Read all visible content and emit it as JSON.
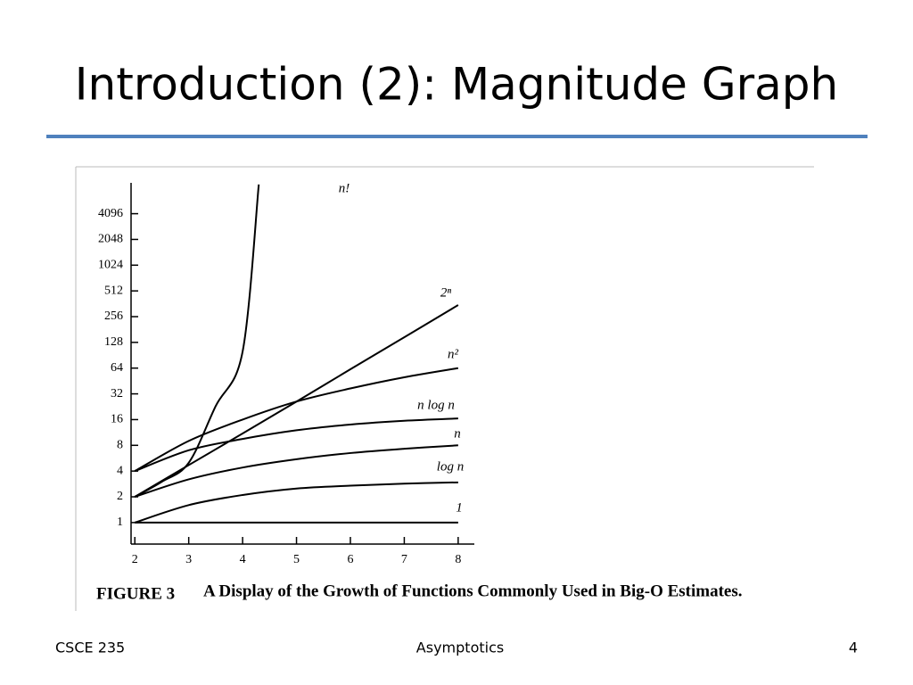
{
  "slide": {
    "title": "Introduction (2): Magnitude Graph",
    "footer_left": "CSCE 235",
    "footer_center": "Asymptotics",
    "footer_right": "4"
  },
  "chart_data": {
    "type": "line",
    "figure_label": "FIGURE 3",
    "caption": "A Display of the Growth of Functions Commonly Used in Big-O Estimates.",
    "x": [
      2,
      3,
      4,
      5,
      6,
      7,
      8
    ],
    "xlim": [
      1.93,
      8.3
    ],
    "xticks": [
      2,
      3,
      4,
      5,
      6,
      7,
      8
    ],
    "yscale": "log",
    "log_base": 2,
    "ylim": [
      0.56,
      9400
    ],
    "yticks": [
      1,
      2,
      4,
      8,
      16,
      32,
      64,
      128,
      256,
      512,
      1024,
      2048,
      4096
    ],
    "grid": false,
    "series": [
      {
        "name": "n!",
        "color": "#000000",
        "x": [
          2,
          2.5,
          3,
          3.5,
          4,
          4.3
        ],
        "values": [
          2,
          3,
          5,
          23,
          100,
          9000
        ]
      },
      {
        "name": "2ⁿ",
        "color": "#000000",
        "values": [
          2,
          4.7,
          11,
          26,
          62,
          147,
          350
        ]
      },
      {
        "name": "n²",
        "color": "#000000",
        "values": [
          4,
          9,
          16,
          26,
          37,
          50,
          64
        ]
      },
      {
        "name": "n log n",
        "color": "#000000",
        "values": [
          4,
          7,
          9.5,
          12,
          14,
          15.5,
          16.5
        ]
      },
      {
        "name": "n",
        "color": "#000000",
        "values": [
          2,
          3.2,
          4.4,
          5.5,
          6.5,
          7.3,
          8
        ]
      },
      {
        "name": "log n",
        "color": "#000000",
        "values": [
          1,
          1.6,
          2.1,
          2.5,
          2.7,
          2.85,
          2.95
        ]
      },
      {
        "name": "1",
        "color": "#000000",
        "values": [
          1,
          1,
          1,
          1,
          1,
          1,
          1
        ]
      }
    ]
  }
}
